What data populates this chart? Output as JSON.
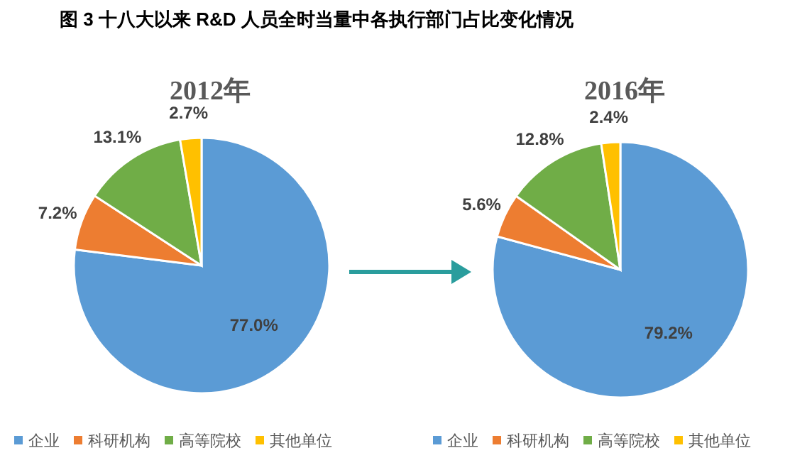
{
  "chart_data": [
    {
      "type": "pie",
      "title": "2012年",
      "annotations": [
        "图 3 十八大以来 R&D 人员全时当量中各执行部门占比变化情况"
      ],
      "categories": [
        "企业",
        "科研机构",
        "高等院校",
        "其他单位"
      ],
      "values": [
        77.0,
        7.2,
        13.1,
        2.7
      ],
      "value_labels": [
        "77.0%",
        "7.2%",
        "13.1%",
        "2.7%"
      ],
      "colors": [
        "#5b9bd5",
        "#ed7d31",
        "#70ad47",
        "#ffc000"
      ],
      "legend": "bottom"
    },
    {
      "type": "pie",
      "title": "2016年",
      "categories": [
        "企业",
        "科研机构",
        "高等院校",
        "其他单位"
      ],
      "values": [
        79.2,
        5.6,
        12.8,
        2.4
      ],
      "value_labels": [
        "79.2%",
        "5.6%",
        "12.8%",
        "2.4%"
      ],
      "colors": [
        "#5b9bd5",
        "#ed7d31",
        "#70ad47",
        "#ffc000"
      ],
      "legend": "bottom"
    }
  ]
}
